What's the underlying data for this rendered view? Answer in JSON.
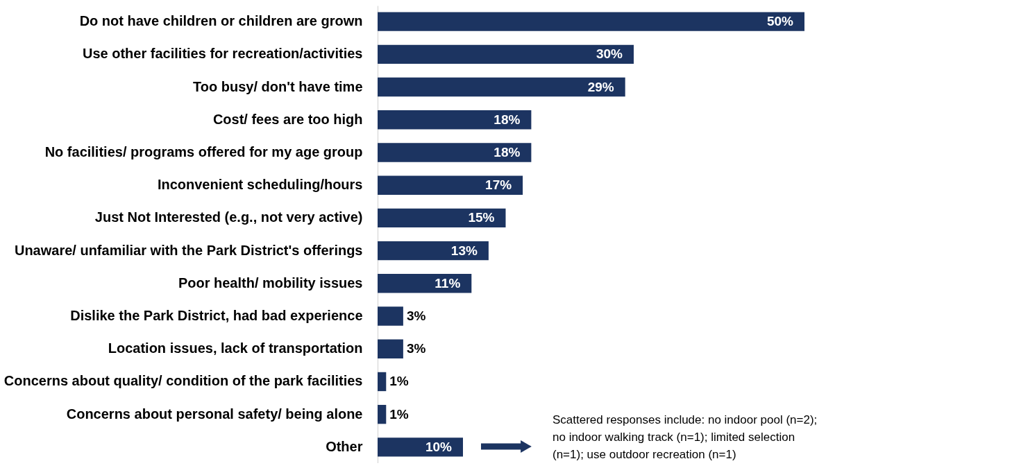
{
  "chart_data": {
    "type": "bar",
    "orientation": "horizontal",
    "color": "#1c3461",
    "categories": [
      "Do not have children or children are grown",
      "Use other facilities for recreation/activities",
      "Too busy/ don't have time",
      "Cost/ fees are too high",
      "No facilities/ programs offered for my age group",
      "Inconvenient scheduling/hours",
      "Just Not Interested (e.g., not very active)",
      "Unaware/ unfamiliar with the Park District's offerings",
      "Poor health/ mobility issues",
      "Dislike the Park District, had bad experience",
      "Location issues, lack of transportation",
      "Concerns about quality/ condition of the park facilities",
      "Concerns about personal safety/ being alone",
      "Other"
    ],
    "values": [
      50,
      30,
      29,
      18,
      18,
      17,
      15,
      13,
      11,
      3,
      3,
      1,
      1,
      10
    ],
    "value_labels": [
      "50%",
      "30%",
      "29%",
      "18%",
      "18%",
      "17%",
      "15%",
      "13%",
      "11%",
      "3%",
      "3%",
      "1%",
      "1%",
      "10%"
    ],
    "annotations": [
      "Scattered responses include: no indoor pool (n=2); no indoor walking track (n=1); limited selection (n=1); use outdoor recreation (n=1)"
    ],
    "grid": false
  }
}
